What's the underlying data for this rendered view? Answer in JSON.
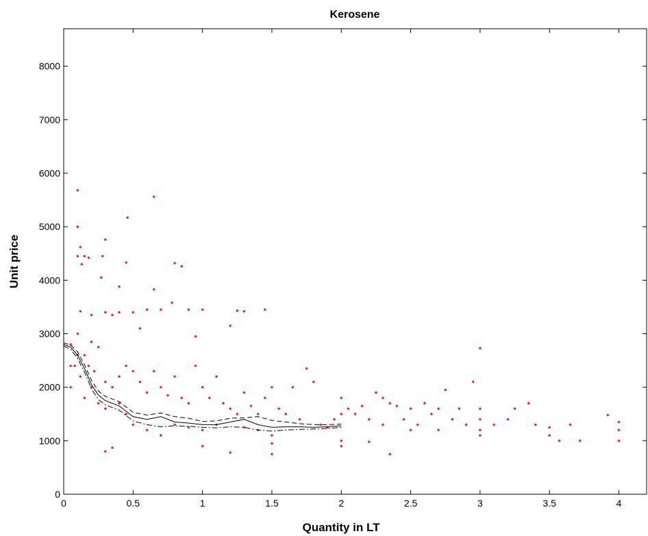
{
  "chart_data": {
    "type": "scatter",
    "title": "Kerosene",
    "x_label": "Quantity in LT",
    "y_label": "Unit price",
    "xlim": [
      0,
      4.2
    ],
    "ylim": [
      0,
      8700
    ],
    "xticks": [
      0,
      0.5,
      1,
      1.5,
      2,
      2.5,
      3,
      3.5,
      4
    ],
    "yticks": [
      0,
      1000,
      2000,
      3000,
      4000,
      5000,
      6000,
      7000,
      8000
    ],
    "series": [
      {
        "type": "scatter",
        "color": "#e8231d",
        "x": [
          0.1,
          0.1,
          0.12,
          0.1,
          0.15,
          0.18,
          0.13,
          0.28,
          0.3,
          0.27,
          0.45,
          0.46,
          0.65,
          0.8,
          0.85,
          0.4,
          0.65,
          0.12,
          0.2,
          0.3,
          0.35,
          0.4,
          0.5,
          0.6,
          0.7,
          0.78,
          0.9,
          1,
          1.25,
          1.3,
          1.45,
          1.2,
          0.55,
          0.95,
          0.1,
          0.2,
          0.25,
          0.15,
          0.05,
          0.08,
          0.05,
          0.12,
          0.18,
          0.22,
          0.3,
          0.35,
          0.4,
          0.45,
          0.5,
          0.55,
          0.6,
          0.65,
          0.7,
          0.75,
          0.8,
          0.85,
          0.9,
          0.95,
          1,
          1.05,
          1.1,
          1.15,
          1.2,
          1.25,
          1.3,
          1.35,
          1.4,
          1.45,
          1.5,
          1.55,
          1.6,
          1.65,
          1.7,
          1.75,
          1.8,
          1.85,
          1.9,
          1.95,
          2,
          2,
          2,
          2,
          1.5,
          1.5,
          1.2,
          1,
          0.3,
          0.35,
          0.5,
          0.6,
          0.7,
          0.8,
          0.9,
          1,
          1.1,
          1.3,
          1.4,
          1.5,
          0.25,
          0.3,
          0.45,
          0.15,
          2.05,
          2.1,
          2.15,
          2.2,
          2.25,
          2.3,
          2.3,
          2.35,
          2.35,
          2.4,
          2.45,
          2.5,
          2.5,
          2.55,
          2.6,
          2.65,
          2.7,
          2.75,
          2.8,
          2.85,
          2.9,
          2.95,
          3,
          3,
          3,
          3,
          3,
          3.1,
          3.2,
          3.25,
          3.35,
          3.4,
          3.5,
          3.5,
          3.57,
          3.65,
          3.72,
          3.92,
          4,
          4,
          4,
          2.2,
          2.7,
          0.05,
          0.1,
          0.2,
          0.4
        ],
        "values": [
          5680,
          5000,
          4620,
          4450,
          4450,
          4420,
          4300,
          4450,
          4760,
          4050,
          4330,
          5170,
          5560,
          4320,
          4260,
          3880,
          3830,
          3420,
          3350,
          3400,
          3350,
          3400,
          3400,
          3450,
          3450,
          3580,
          3450,
          3450,
          3430,
          3420,
          3450,
          3150,
          3100,
          2950,
          3000,
          2850,
          2750,
          2600,
          2800,
          2400,
          2000,
          2200,
          2400,
          2300,
          2100,
          2000,
          2200,
          2400,
          2300,
          2100,
          1900,
          2300,
          2000,
          1850,
          2200,
          1800,
          1700,
          2400,
          2000,
          1800,
          2200,
          1700,
          1600,
          1500,
          1900,
          1650,
          1500,
          1800,
          2000,
          1600,
          1500,
          2000,
          1400,
          2350,
          2100,
          1300,
          1250,
          1400,
          1800,
          1500,
          1000,
          900,
          950,
          750,
          780,
          900,
          800,
          870,
          1300,
          1200,
          1100,
          1300,
          1250,
          1200,
          1300,
          1250,
          1200,
          1100,
          1700,
          1600,
          1500,
          1800,
          1600,
          1500,
          1650,
          1400,
          1900,
          1800,
          1300,
          1700,
          750,
          1650,
          1400,
          1600,
          1200,
          1300,
          1700,
          1500,
          1200,
          1950,
          1400,
          1600,
          1300,
          2100,
          2730,
          1600,
          1400,
          1200,
          1100,
          1300,
          1400,
          1600,
          1700,
          1300,
          1250,
          1100,
          1000,
          1300,
          1000,
          1480,
          1350,
          1200,
          1000,
          980,
          1600,
          2400,
          2600,
          2000,
          1700
        ]
      },
      {
        "type": "line",
        "color": "#000000",
        "dash": "none",
        "x": [
          0,
          0.05,
          0.1,
          0.15,
          0.2,
          0.25,
          0.3,
          0.4,
          0.5,
          0.6,
          0.7,
          0.8,
          0.9,
          1,
          1.1,
          1.2,
          1.3,
          1.4,
          1.5,
          1.6,
          1.7,
          1.8,
          1.9,
          2
        ],
        "values": [
          2800,
          2750,
          2600,
          2350,
          2050,
          1850,
          1750,
          1650,
          1450,
          1400,
          1450,
          1350,
          1330,
          1300,
          1300,
          1350,
          1400,
          1300,
          1250,
          1260,
          1260,
          1250,
          1260,
          1280
        ]
      },
      {
        "type": "line",
        "color": "#000000",
        "dash": "7,4",
        "x": [
          0,
          0.05,
          0.1,
          0.15,
          0.2,
          0.25,
          0.3,
          0.4,
          0.5,
          0.6,
          0.7,
          0.8,
          0.9,
          1,
          1.1,
          1.2,
          1.3,
          1.4,
          1.5,
          1.6,
          1.7,
          1.8,
          1.9,
          2
        ],
        "values": [
          2830,
          2790,
          2660,
          2420,
          2130,
          1930,
          1830,
          1730,
          1530,
          1480,
          1520,
          1450,
          1420,
          1360,
          1370,
          1420,
          1430,
          1450,
          1380,
          1350,
          1320,
          1300,
          1300,
          1310
        ]
      },
      {
        "type": "line",
        "color": "#000000",
        "dash": "8,3,2,3",
        "x": [
          0,
          0.05,
          0.1,
          0.15,
          0.2,
          0.25,
          0.3,
          0.4,
          0.5,
          0.6,
          0.7,
          0.8,
          0.9,
          1,
          1.1,
          1.2,
          1.3,
          1.4,
          1.5,
          1.6,
          1.7,
          1.8,
          1.9,
          2
        ],
        "values": [
          2770,
          2710,
          2540,
          2280,
          1970,
          1770,
          1670,
          1570,
          1370,
          1300,
          1260,
          1280,
          1270,
          1250,
          1240,
          1260,
          1250,
          1200,
          1180,
          1200,
          1210,
          1220,
          1230,
          1250
        ]
      }
    ]
  }
}
